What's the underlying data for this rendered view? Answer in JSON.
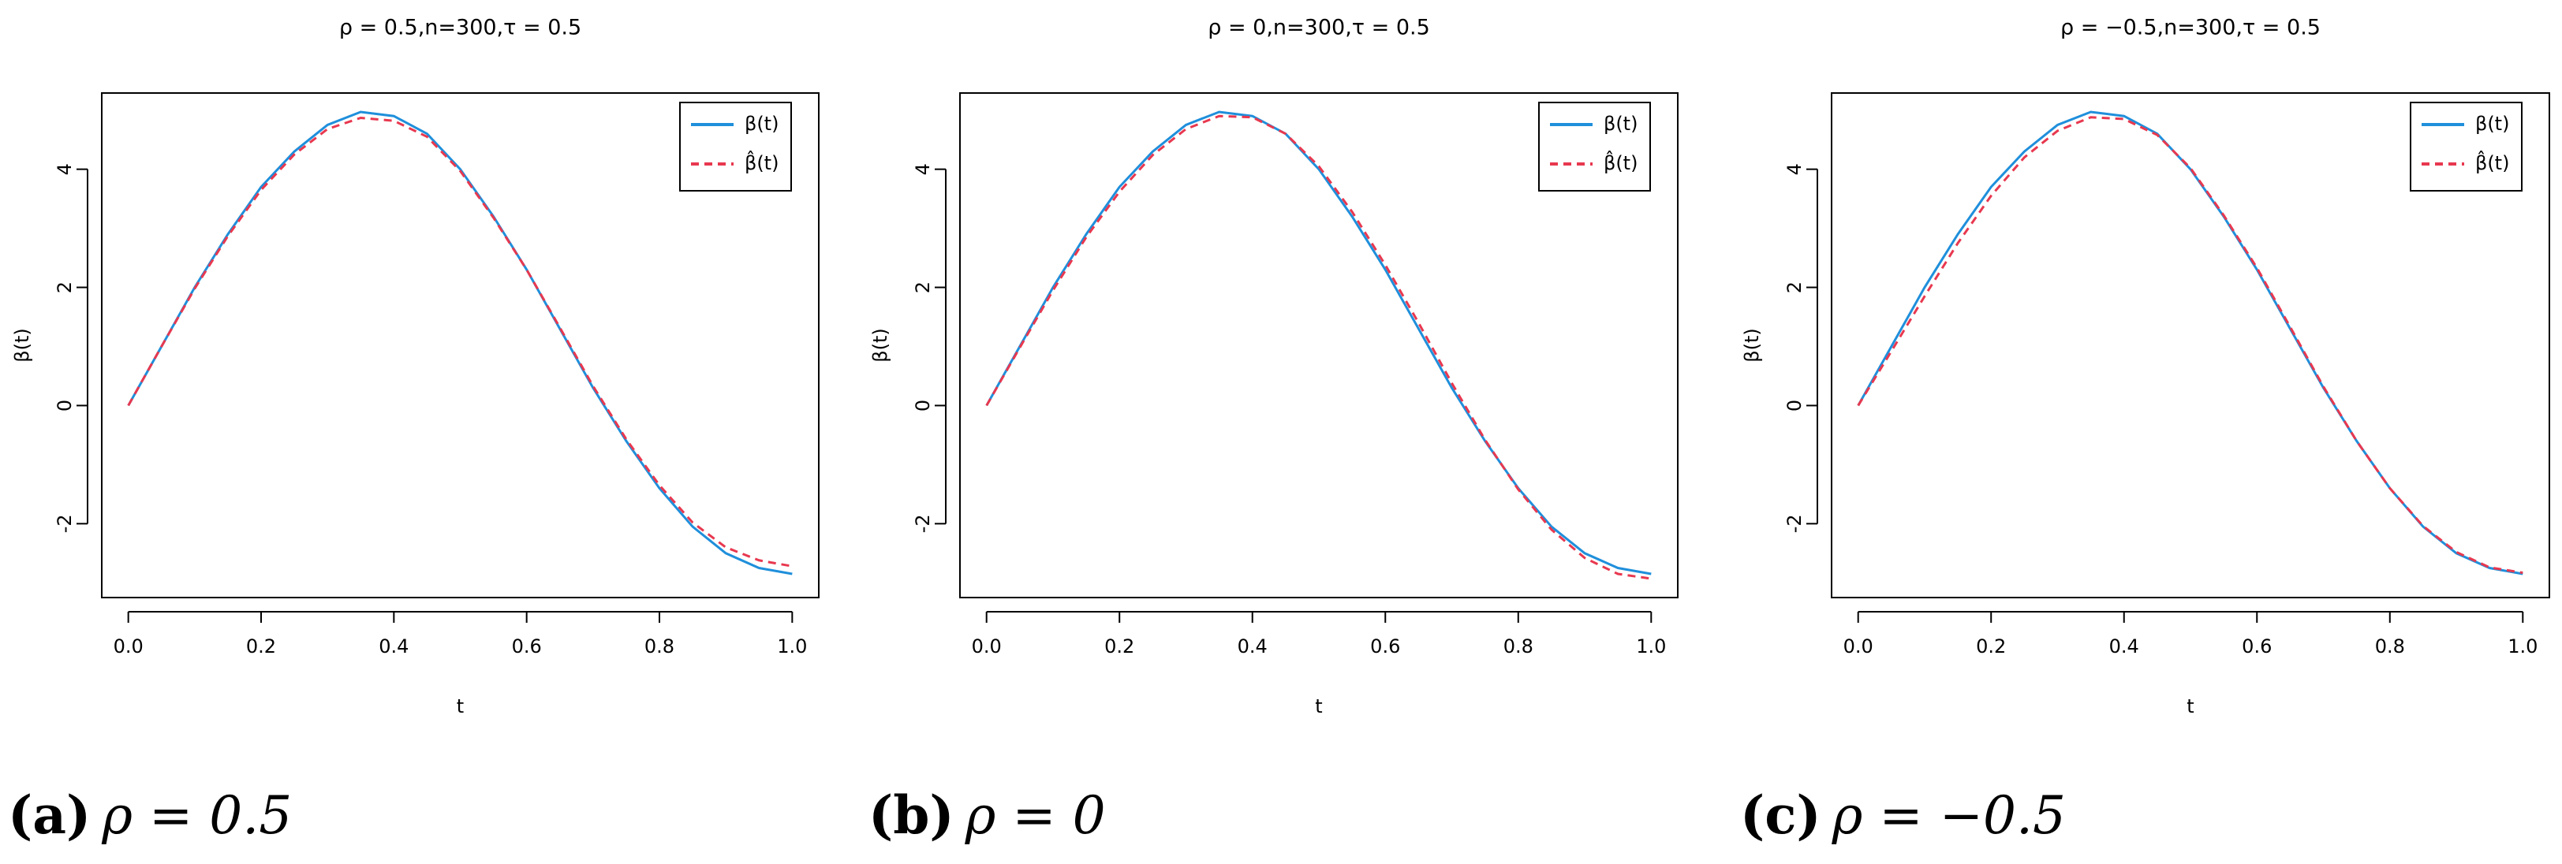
{
  "chart_data": [
    {
      "type": "line",
      "title": "ρ = 0.5,n=300,τ = 0.5",
      "xlabel": "t",
      "ylabel": "β(t)",
      "caption_label": "(a)",
      "caption_text": "ρ = 0.5",
      "x": [
        0,
        0.05,
        0.1,
        0.15,
        0.2,
        0.25,
        0.3,
        0.35,
        0.4,
        0.45,
        0.5,
        0.55,
        0.6,
        0.65,
        0.7,
        0.75,
        0.8,
        0.85,
        0.9,
        0.95,
        1
      ],
      "series": [
        {
          "name": "β(t)",
          "color": "#1f8fdb",
          "style": "solid",
          "values": [
            0,
            1.0,
            2.0,
            2.9,
            3.7,
            4.3,
            4.75,
            4.97,
            4.9,
            4.6,
            4.0,
            3.2,
            2.3,
            1.3,
            0.3,
            -0.6,
            -1.4,
            -2.05,
            -2.5,
            -2.75,
            -2.85
          ]
        },
        {
          "name": "β̂(t)",
          "color": "#e8384f",
          "style": "dashed",
          "values": [
            0,
            1.0,
            1.98,
            2.87,
            3.65,
            4.25,
            4.68,
            4.87,
            4.82,
            4.55,
            3.97,
            3.18,
            2.3,
            1.32,
            0.33,
            -0.57,
            -1.35,
            -1.98,
            -2.4,
            -2.62,
            -2.72
          ]
        }
      ],
      "xlim": [
        -0.04,
        1.04
      ],
      "ylim": [
        -3.25,
        5.29
      ],
      "xticks": [
        {
          "value": 0,
          "label": "0.0"
        },
        0.2,
        0.4,
        0.6,
        0.8,
        {
          "value": 1,
          "label": "1.0"
        }
      ],
      "yticks": [
        -2,
        0,
        2,
        4
      ],
      "legend": "topright"
    },
    {
      "type": "line",
      "title": "ρ = 0,n=300,τ = 0.5",
      "xlabel": "t",
      "ylabel": "β(t)",
      "caption_label": "(b)",
      "caption_text": "ρ = 0",
      "x": [
        0,
        0.05,
        0.1,
        0.15,
        0.2,
        0.25,
        0.3,
        0.35,
        0.4,
        0.45,
        0.5,
        0.55,
        0.6,
        0.65,
        0.7,
        0.75,
        0.8,
        0.85,
        0.9,
        0.95,
        1
      ],
      "series": [
        {
          "name": "β(t)",
          "color": "#1f8fdb",
          "style": "solid",
          "values": [
            0,
            1.0,
            2.0,
            2.9,
            3.7,
            4.3,
            4.75,
            4.97,
            4.9,
            4.6,
            4.0,
            3.2,
            2.3,
            1.3,
            0.3,
            -0.6,
            -1.4,
            -2.05,
            -2.5,
            -2.75,
            -2.85
          ]
        },
        {
          "name": "β̂(t)",
          "color": "#e8384f",
          "style": "dashed",
          "values": [
            0,
            0.98,
            1.95,
            2.85,
            3.62,
            4.24,
            4.68,
            4.9,
            4.88,
            4.6,
            4.05,
            3.28,
            2.38,
            1.4,
            0.38,
            -0.58,
            -1.42,
            -2.1,
            -2.58,
            -2.85,
            -2.93
          ]
        }
      ],
      "xlim": [
        -0.04,
        1.04
      ],
      "ylim": [
        -3.25,
        5.29
      ],
      "xticks": [
        {
          "value": 0,
          "label": "0.0"
        },
        0.2,
        0.4,
        0.6,
        0.8,
        {
          "value": 1,
          "label": "1.0"
        }
      ],
      "yticks": [
        -2,
        0,
        2,
        4
      ],
      "legend": "topright"
    },
    {
      "type": "line",
      "title": "ρ = −0.5,n=300,τ = 0.5",
      "xlabel": "t",
      "ylabel": "β(t)",
      "caption_label": "(c)",
      "caption_text": "ρ = −0.5",
      "x": [
        0,
        0.05,
        0.1,
        0.15,
        0.2,
        0.25,
        0.3,
        0.35,
        0.4,
        0.45,
        0.5,
        0.55,
        0.6,
        0.65,
        0.7,
        0.75,
        0.8,
        0.85,
        0.9,
        0.95,
        1
      ],
      "series": [
        {
          "name": "β(t)",
          "color": "#1f8fdb",
          "style": "solid",
          "values": [
            0,
            1.0,
            2.0,
            2.9,
            3.7,
            4.3,
            4.75,
            4.97,
            4.9,
            4.6,
            4.0,
            3.2,
            2.3,
            1.3,
            0.3,
            -0.6,
            -1.4,
            -2.05,
            -2.5,
            -2.75,
            -2.85
          ]
        },
        {
          "name": "β̂(t)",
          "color": "#e8384f",
          "style": "dashed",
          "values": [
            0,
            0.92,
            1.85,
            2.75,
            3.55,
            4.2,
            4.65,
            4.88,
            4.85,
            4.58,
            4.02,
            3.22,
            2.33,
            1.33,
            0.32,
            -0.6,
            -1.4,
            -2.04,
            -2.48,
            -2.74,
            -2.83
          ]
        }
      ],
      "xlim": [
        -0.04,
        1.04
      ],
      "ylim": [
        -3.25,
        5.29
      ],
      "xticks": [
        {
          "value": 0,
          "label": "0.0"
        },
        0.2,
        0.4,
        0.6,
        0.8,
        {
          "value": 1,
          "label": "1.0"
        }
      ],
      "yticks": [
        -2,
        0,
        2,
        4
      ],
      "legend": "topright"
    }
  ]
}
